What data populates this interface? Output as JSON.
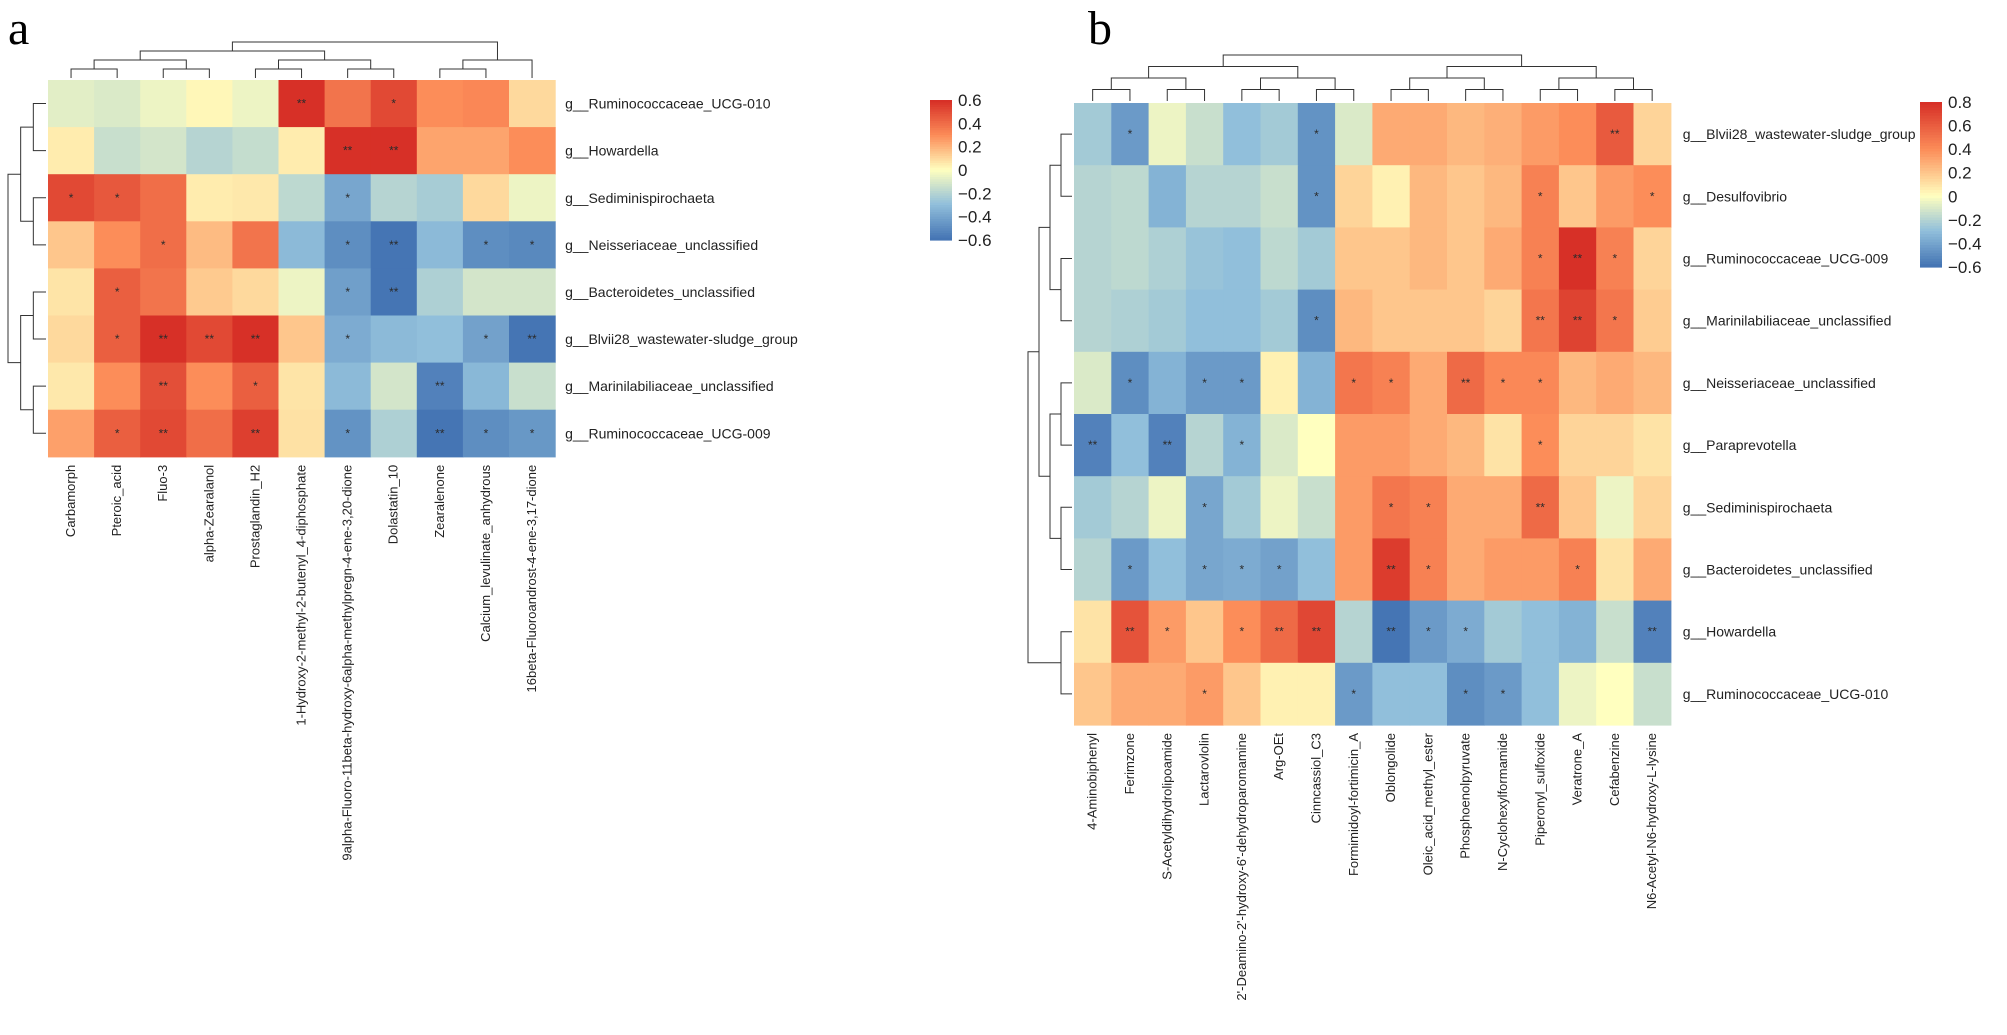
{
  "colors": {
    "low": "#4575b4",
    "mid_low": "#91bfdb",
    "center": "#ffffbf",
    "mid_high": "#fc8d59",
    "high": "#d73027"
  },
  "chart_data": [
    {
      "type": "heatmap",
      "panel_label": "a",
      "rows": [
        "g__Ruminococcaceae_UCG-010",
        "g__Howardella",
        "g__Sediminispirochaeta",
        "g__Neisseriaceae_unclassified",
        "g__Bacteroidetes_unclassified",
        "g__Blvii28_wastewater-sludge_group",
        "g__Marinilabiliaceae_unclassified",
        "g__Ruminococcaceae_UCG-009"
      ],
      "columns": [
        "Carbamorph",
        "Pteroic_acid",
        "Fluo-3",
        "alpha-Zearalanol",
        "Prostaglandin_H2",
        "1-Hydroxy-2-methyl-2-butenyl_4-diphosphate",
        "9alpha-Fluoro-11beta-hydroxy-6alpha-methylpregn-4-ene-3,20-dione",
        "Dolastatin_10",
        "Zearalenone",
        "Calcium_levulinate_anhydrous",
        "16beta-Fluoroandrost-4-ene-3,17-dione"
      ],
      "values": [
        [
          -0.08,
          -0.1,
          -0.05,
          0.02,
          -0.05,
          0.62,
          0.38,
          0.52,
          0.3,
          0.32,
          0.1
        ],
        [
          0.05,
          -0.15,
          -0.12,
          -0.2,
          -0.16,
          0.05,
          0.6,
          0.63,
          0.24,
          0.24,
          0.3
        ],
        [
          0.52,
          0.47,
          0.4,
          0.05,
          0.06,
          -0.18,
          -0.4,
          -0.2,
          -0.24,
          0.1,
          -0.05
        ],
        [
          0.15,
          0.3,
          0.4,
          0.18,
          0.38,
          -0.32,
          -0.5,
          -0.6,
          -0.32,
          -0.5,
          -0.52
        ],
        [
          0.07,
          0.45,
          0.38,
          0.14,
          0.1,
          -0.05,
          -0.43,
          -0.6,
          -0.22,
          -0.12,
          -0.12
        ],
        [
          0.1,
          0.45,
          0.62,
          0.52,
          0.65,
          0.15,
          -0.38,
          -0.32,
          -0.3,
          -0.42,
          -0.62
        ],
        [
          0.06,
          0.3,
          0.5,
          0.3,
          0.45,
          0.07,
          -0.32,
          -0.12,
          -0.55,
          -0.33,
          -0.15
        ],
        [
          0.25,
          0.45,
          0.52,
          0.4,
          0.55,
          0.08,
          -0.48,
          -0.22,
          -0.62,
          -0.5,
          -0.46
        ]
      ],
      "significance": [
        [
          "",
          "",
          "",
          "",
          "",
          "**",
          "",
          "*",
          "",
          "",
          ""
        ],
        [
          "",
          "",
          "",
          "",
          "",
          "",
          "**",
          "**",
          "",
          "",
          ""
        ],
        [
          "*",
          "*",
          "",
          "",
          "",
          "",
          "*",
          "",
          "",
          "",
          ""
        ],
        [
          "",
          "",
          "*",
          "",
          "",
          "",
          "*",
          "**",
          "",
          "*",
          "*"
        ],
        [
          "",
          "*",
          "",
          "",
          "",
          "",
          "*",
          "**",
          "",
          "",
          ""
        ],
        [
          "",
          "*",
          "**",
          "**",
          "**",
          "",
          "*",
          "",
          "",
          "*",
          "**"
        ],
        [
          "",
          "",
          "**",
          "",
          "*",
          "",
          "",
          "",
          "**",
          "",
          ""
        ],
        [
          "",
          "*",
          "**",
          "",
          "**",
          "",
          "*",
          "",
          "**",
          "*",
          "*"
        ]
      ],
      "colorbar": {
        "min": -0.6,
        "max": 0.6,
        "ticks": [
          "0.6",
          "0.4",
          "0.2",
          "0",
          "-0.2",
          "-0.4",
          "-0.6"
        ]
      }
    },
    {
      "type": "heatmap",
      "panel_label": "b",
      "rows": [
        "g__Blvii28_wastewater-sludge_group",
        "g__Desulfovibrio",
        "g__Ruminococcaceae_UCG-009",
        "g__Marinilabiliaceae_unclassified",
        "g__Neisseriaceae_unclassified",
        "g__Paraprevotella",
        "g__Sediminispirochaeta",
        "g__Bacteroidetes_unclassified",
        "g__Howardella",
        "g__Ruminococcaceae_UCG-010"
      ],
      "columns": [
        "4-Aminobiphenyl",
        "Ferimzone",
        "S-Acetyldihydrolipoamide",
        "Lactarovlolin",
        "2'-Deamino-2'-hydroxy-6'-dehydroparomamine",
        "Arg-OEt",
        "Cinncassiol_C3",
        "Formimidoyl-fortimicin_A",
        "Oblongolide",
        "Oleic_acid_methyl_ester",
        "Phosphoenolpyruvate",
        "N-Cyclohexylformamide",
        "Piperonyl_sulfoxide",
        "Veratrone_A",
        "Cefabenzine",
        "N6-Acetyl-N6-hydroxy-L-lysine"
      ],
      "values": [
        [
          -0.25,
          -0.45,
          -0.05,
          -0.15,
          -0.3,
          -0.25,
          -0.48,
          -0.1,
          0.3,
          0.3,
          0.25,
          0.28,
          0.35,
          0.4,
          0.62,
          0.15
        ],
        [
          -0.2,
          -0.18,
          -0.35,
          -0.2,
          -0.2,
          -0.15,
          -0.48,
          0.15,
          0.05,
          0.25,
          0.2,
          0.25,
          0.45,
          0.2,
          0.35,
          0.4
        ],
        [
          -0.2,
          -0.18,
          -0.22,
          -0.28,
          -0.3,
          -0.18,
          -0.25,
          0.2,
          0.2,
          0.25,
          0.2,
          0.3,
          0.45,
          0.8,
          0.45,
          0.15
        ],
        [
          -0.2,
          -0.22,
          -0.25,
          -0.3,
          -0.3,
          -0.25,
          -0.5,
          0.25,
          0.2,
          0.2,
          0.2,
          0.15,
          0.5,
          0.72,
          0.5,
          0.18
        ],
        [
          -0.1,
          -0.5,
          -0.35,
          -0.45,
          -0.45,
          0.05,
          -0.35,
          0.5,
          0.45,
          0.3,
          0.55,
          0.42,
          0.42,
          0.25,
          0.3,
          0.25
        ],
        [
          -0.55,
          -0.3,
          -0.55,
          -0.2,
          -0.35,
          -0.1,
          0.0,
          0.35,
          0.35,
          0.3,
          0.25,
          0.1,
          0.4,
          0.15,
          0.15,
          0.1
        ],
        [
          -0.25,
          -0.2,
          -0.05,
          -0.4,
          -0.25,
          -0.05,
          -0.15,
          0.35,
          0.5,
          0.45,
          0.3,
          0.3,
          0.55,
          0.2,
          -0.05,
          0.15
        ],
        [
          -0.2,
          -0.45,
          -0.3,
          -0.4,
          -0.38,
          -0.42,
          -0.3,
          0.35,
          0.75,
          0.45,
          0.3,
          0.35,
          0.35,
          0.45,
          0.1,
          0.3
        ],
        [
          0.1,
          0.65,
          0.35,
          0.2,
          0.4,
          0.55,
          0.7,
          -0.2,
          -0.6,
          -0.45,
          -0.38,
          -0.25,
          -0.3,
          -0.35,
          -0.15,
          -0.55
        ],
        [
          0.2,
          0.3,
          0.3,
          0.35,
          0.2,
          0.05,
          0.05,
          -0.45,
          -0.3,
          -0.3,
          -0.5,
          -0.45,
          -0.3,
          -0.05,
          0.0,
          -0.15
        ]
      ],
      "significance": [
        [
          "",
          "*",
          "",
          "",
          "",
          "",
          "*",
          "",
          "",
          "",
          "",
          "",
          "",
          "",
          "**",
          ""
        ],
        [
          "",
          "",
          "",
          "",
          "",
          "",
          "*",
          "",
          "",
          "",
          "",
          "",
          "*",
          "",
          "",
          "*"
        ],
        [
          "",
          "",
          "",
          "",
          "",
          "",
          "",
          "",
          "",
          "",
          "",
          "",
          "*",
          "**",
          "*",
          ""
        ],
        [
          "",
          "",
          "",
          "",
          "",
          "",
          "*",
          "",
          "",
          "",
          "",
          "",
          "**",
          "**",
          "*",
          ""
        ],
        [
          "",
          "*",
          "",
          "*",
          "*",
          "",
          "",
          "*",
          "*",
          "",
          "**",
          "*",
          "*",
          "",
          "",
          ""
        ],
        [
          "**",
          "",
          "**",
          "",
          "*",
          "",
          "",
          "",
          "",
          "",
          "",
          "",
          "*",
          "",
          "",
          ""
        ],
        [
          "",
          "",
          "",
          "*",
          "",
          "",
          "",
          "",
          "*",
          "*",
          "",
          "",
          "**",
          "",
          "",
          ""
        ],
        [
          "",
          "*",
          "",
          "*",
          "*",
          "*",
          "",
          "",
          "**",
          "*",
          "",
          "",
          "",
          "*",
          "",
          ""
        ],
        [
          "",
          "**",
          "*",
          "",
          "*",
          "**",
          "**",
          "",
          "**",
          "*",
          "*",
          "",
          "",
          "",
          "",
          "**"
        ],
        [
          "",
          "",
          "",
          "*",
          "",
          "",
          "",
          "*",
          "",
          "",
          "*",
          "*",
          "",
          "",
          "",
          ""
        ]
      ],
      "colorbar": {
        "min": -0.6,
        "max": 0.8,
        "ticks": [
          "0.8",
          "0.6",
          "0.4",
          "0.2",
          "0",
          "-0.2",
          "-0.4",
          "-0.6"
        ]
      }
    }
  ]
}
